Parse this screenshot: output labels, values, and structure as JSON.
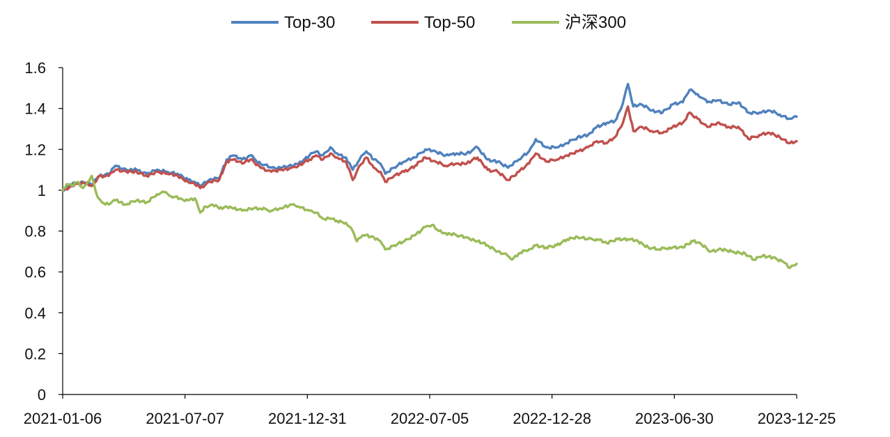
{
  "chart_data": {
    "type": "line",
    "title": "",
    "xlabel": "",
    "ylabel": "",
    "ylim": [
      0,
      1.6
    ],
    "yticks": [
      0,
      0.2,
      0.4,
      0.6,
      0.8,
      1,
      1.2,
      1.4,
      1.6
    ],
    "ytick_labels": [
      "0",
      "0.2",
      "0.4",
      "0.6",
      "0.8",
      "1",
      "1.2",
      "1.4",
      "1.6"
    ],
    "xlim": [
      "2021-01-06",
      "2023-12-25"
    ],
    "xtick_labels": [
      "2021-01-06",
      "2021-07-07",
      "2021-12-31",
      "2022-07-05",
      "2022-12-28",
      "2023-06-30",
      "2023-12-25"
    ],
    "grid": false,
    "legend_position": "top",
    "series": [
      {
        "name": "Top-30",
        "color": "#4F81BD",
        "points": [
          [
            "2021-01-06",
            1.0
          ],
          [
            "2021-01-20",
            1.03
          ],
          [
            "2021-02-05",
            1.04
          ],
          [
            "2021-02-18",
            1.03
          ],
          [
            "2021-03-01",
            1.07
          ],
          [
            "2021-03-15",
            1.08
          ],
          [
            "2021-03-25",
            1.12
          ],
          [
            "2021-04-10",
            1.1
          ],
          [
            "2021-04-25",
            1.1
          ],
          [
            "2021-05-10",
            1.08
          ],
          [
            "2021-05-25",
            1.1
          ],
          [
            "2021-06-10",
            1.09
          ],
          [
            "2021-06-25",
            1.08
          ],
          [
            "2021-07-10",
            1.05
          ],
          [
            "2021-07-20",
            1.04
          ],
          [
            "2021-07-28",
            1.02
          ],
          [
            "2021-08-10",
            1.05
          ],
          [
            "2021-08-25",
            1.06
          ],
          [
            "2021-09-05",
            1.15
          ],
          [
            "2021-09-15",
            1.17
          ],
          [
            "2021-09-28",
            1.15
          ],
          [
            "2021-10-10",
            1.17
          ],
          [
            "2021-10-25",
            1.13
          ],
          [
            "2021-11-10",
            1.11
          ],
          [
            "2021-11-25",
            1.11
          ],
          [
            "2021-12-10",
            1.12
          ],
          [
            "2021-12-20",
            1.13
          ],
          [
            "2022-01-05",
            1.17
          ],
          [
            "2022-01-15",
            1.19
          ],
          [
            "2022-01-25",
            1.17
          ],
          [
            "2022-02-05",
            1.21
          ],
          [
            "2022-02-15",
            1.18
          ],
          [
            "2022-02-28",
            1.16
          ],
          [
            "2022-03-10",
            1.1
          ],
          [
            "2022-03-20",
            1.15
          ],
          [
            "2022-03-30",
            1.19
          ],
          [
            "2022-04-10",
            1.15
          ],
          [
            "2022-04-20",
            1.13
          ],
          [
            "2022-04-27",
            1.08
          ],
          [
            "2022-05-10",
            1.11
          ],
          [
            "2022-05-25",
            1.14
          ],
          [
            "2022-06-10",
            1.16
          ],
          [
            "2022-06-25",
            1.2
          ],
          [
            "2022-07-10",
            1.19
          ],
          [
            "2022-07-25",
            1.17
          ],
          [
            "2022-08-10",
            1.18
          ],
          [
            "2022-08-25",
            1.18
          ],
          [
            "2022-09-10",
            1.21
          ],
          [
            "2022-09-25",
            1.15
          ],
          [
            "2022-10-10",
            1.14
          ],
          [
            "2022-10-25",
            1.11
          ],
          [
            "2022-11-10",
            1.15
          ],
          [
            "2022-11-25",
            1.19
          ],
          [
            "2022-12-05",
            1.25
          ],
          [
            "2022-12-20",
            1.21
          ],
          [
            "2023-01-05",
            1.21
          ],
          [
            "2023-01-20",
            1.23
          ],
          [
            "2023-02-05",
            1.26
          ],
          [
            "2023-02-20",
            1.27
          ],
          [
            "2023-03-05",
            1.31
          ],
          [
            "2023-03-20",
            1.33
          ],
          [
            "2023-04-01",
            1.34
          ],
          [
            "2023-04-10",
            1.4
          ],
          [
            "2023-04-20",
            1.52
          ],
          [
            "2023-04-28",
            1.41
          ],
          [
            "2023-05-10",
            1.42
          ],
          [
            "2023-05-25",
            1.39
          ],
          [
            "2023-06-10",
            1.38
          ],
          [
            "2023-06-25",
            1.42
          ],
          [
            "2023-07-10",
            1.43
          ],
          [
            "2023-07-20",
            1.49
          ],
          [
            "2023-08-01",
            1.47
          ],
          [
            "2023-08-15",
            1.43
          ],
          [
            "2023-08-30",
            1.44
          ],
          [
            "2023-09-15",
            1.42
          ],
          [
            "2023-09-30",
            1.43
          ],
          [
            "2023-10-15",
            1.38
          ],
          [
            "2023-10-31",
            1.38
          ],
          [
            "2023-11-15",
            1.39
          ],
          [
            "2023-11-30",
            1.37
          ],
          [
            "2023-12-15",
            1.35
          ],
          [
            "2023-12-25",
            1.36
          ]
        ]
      },
      {
        "name": "Top-50",
        "color": "#C0504D",
        "points": [
          [
            "2021-01-06",
            1.0
          ],
          [
            "2021-01-20",
            1.02
          ],
          [
            "2021-02-05",
            1.04
          ],
          [
            "2021-02-18",
            1.02
          ],
          [
            "2021-03-01",
            1.07
          ],
          [
            "2021-03-15",
            1.07
          ],
          [
            "2021-03-25",
            1.1
          ],
          [
            "2021-04-10",
            1.09
          ],
          [
            "2021-04-25",
            1.09
          ],
          [
            "2021-05-10",
            1.07
          ],
          [
            "2021-05-25",
            1.09
          ],
          [
            "2021-06-10",
            1.08
          ],
          [
            "2021-06-25",
            1.07
          ],
          [
            "2021-07-10",
            1.04
          ],
          [
            "2021-07-20",
            1.03
          ],
          [
            "2021-07-28",
            1.01
          ],
          [
            "2021-08-10",
            1.04
          ],
          [
            "2021-08-25",
            1.05
          ],
          [
            "2021-09-05",
            1.14
          ],
          [
            "2021-09-15",
            1.15
          ],
          [
            "2021-09-28",
            1.13
          ],
          [
            "2021-10-10",
            1.15
          ],
          [
            "2021-10-25",
            1.11
          ],
          [
            "2021-11-10",
            1.09
          ],
          [
            "2021-11-25",
            1.1
          ],
          [
            "2021-12-10",
            1.11
          ],
          [
            "2021-12-20",
            1.12
          ],
          [
            "2022-01-05",
            1.15
          ],
          [
            "2022-01-15",
            1.17
          ],
          [
            "2022-01-25",
            1.15
          ],
          [
            "2022-02-05",
            1.18
          ],
          [
            "2022-02-15",
            1.16
          ],
          [
            "2022-02-28",
            1.14
          ],
          [
            "2022-03-10",
            1.05
          ],
          [
            "2022-03-20",
            1.12
          ],
          [
            "2022-03-30",
            1.16
          ],
          [
            "2022-04-10",
            1.11
          ],
          [
            "2022-04-20",
            1.09
          ],
          [
            "2022-04-27",
            1.04
          ],
          [
            "2022-05-10",
            1.07
          ],
          [
            "2022-05-25",
            1.09
          ],
          [
            "2022-06-10",
            1.12
          ],
          [
            "2022-06-25",
            1.16
          ],
          [
            "2022-07-10",
            1.14
          ],
          [
            "2022-07-25",
            1.12
          ],
          [
            "2022-08-10",
            1.13
          ],
          [
            "2022-08-25",
            1.13
          ],
          [
            "2022-09-10",
            1.16
          ],
          [
            "2022-09-25",
            1.1
          ],
          [
            "2022-10-10",
            1.09
          ],
          [
            "2022-10-25",
            1.05
          ],
          [
            "2022-11-10",
            1.09
          ],
          [
            "2022-11-25",
            1.13
          ],
          [
            "2022-12-05",
            1.18
          ],
          [
            "2022-12-20",
            1.14
          ],
          [
            "2023-01-05",
            1.15
          ],
          [
            "2023-01-20",
            1.17
          ],
          [
            "2023-02-05",
            1.19
          ],
          [
            "2023-02-20",
            1.21
          ],
          [
            "2023-03-05",
            1.24
          ],
          [
            "2023-03-20",
            1.23
          ],
          [
            "2023-04-01",
            1.26
          ],
          [
            "2023-04-10",
            1.31
          ],
          [
            "2023-04-20",
            1.41
          ],
          [
            "2023-04-28",
            1.29
          ],
          [
            "2023-05-10",
            1.31
          ],
          [
            "2023-05-25",
            1.29
          ],
          [
            "2023-06-10",
            1.28
          ],
          [
            "2023-06-25",
            1.31
          ],
          [
            "2023-07-10",
            1.33
          ],
          [
            "2023-07-20",
            1.38
          ],
          [
            "2023-08-01",
            1.35
          ],
          [
            "2023-08-15",
            1.31
          ],
          [
            "2023-08-30",
            1.33
          ],
          [
            "2023-09-15",
            1.31
          ],
          [
            "2023-09-30",
            1.31
          ],
          [
            "2023-10-15",
            1.25
          ],
          [
            "2023-10-31",
            1.27
          ],
          [
            "2023-11-15",
            1.28
          ],
          [
            "2023-11-30",
            1.26
          ],
          [
            "2023-12-15",
            1.23
          ],
          [
            "2023-12-25",
            1.24
          ]
        ]
      },
      {
        "name": "沪深300",
        "color": "#9BBB59",
        "points": [
          [
            "2021-01-06",
            1.0
          ],
          [
            "2021-01-12",
            1.03
          ],
          [
            "2021-01-20",
            1.02
          ],
          [
            "2021-01-28",
            1.04
          ],
          [
            "2021-02-05",
            1.01
          ],
          [
            "2021-02-12",
            1.04
          ],
          [
            "2021-02-18",
            1.07
          ],
          [
            "2021-02-25",
            0.98
          ],
          [
            "2021-03-05",
            0.94
          ],
          [
            "2021-03-15",
            0.93
          ],
          [
            "2021-03-25",
            0.95
          ],
          [
            "2021-04-10",
            0.93
          ],
          [
            "2021-04-25",
            0.95
          ],
          [
            "2021-05-10",
            0.94
          ],
          [
            "2021-05-25",
            0.98
          ],
          [
            "2021-06-05",
            0.99
          ],
          [
            "2021-06-15",
            0.97
          ],
          [
            "2021-06-28",
            0.96
          ],
          [
            "2021-07-10",
            0.95
          ],
          [
            "2021-07-20",
            0.96
          ],
          [
            "2021-07-28",
            0.89
          ],
          [
            "2021-08-05",
            0.92
          ],
          [
            "2021-08-15",
            0.93
          ],
          [
            "2021-08-25",
            0.91
          ],
          [
            "2021-09-05",
            0.92
          ],
          [
            "2021-09-15",
            0.91
          ],
          [
            "2021-09-28",
            0.9
          ],
          [
            "2021-10-10",
            0.91
          ],
          [
            "2021-10-25",
            0.91
          ],
          [
            "2021-11-10",
            0.9
          ],
          [
            "2021-11-25",
            0.91
          ],
          [
            "2021-12-10",
            0.93
          ],
          [
            "2021-12-20",
            0.92
          ],
          [
            "2022-01-05",
            0.9
          ],
          [
            "2022-01-15",
            0.89
          ],
          [
            "2022-01-25",
            0.86
          ],
          [
            "2022-02-05",
            0.86
          ],
          [
            "2022-02-15",
            0.85
          ],
          [
            "2022-02-28",
            0.84
          ],
          [
            "2022-03-10",
            0.8
          ],
          [
            "2022-03-16",
            0.75
          ],
          [
            "2022-03-25",
            0.78
          ],
          [
            "2022-04-10",
            0.77
          ],
          [
            "2022-04-20",
            0.75
          ],
          [
            "2022-04-27",
            0.71
          ],
          [
            "2022-05-10",
            0.73
          ],
          [
            "2022-05-25",
            0.75
          ],
          [
            "2022-06-10",
            0.78
          ],
          [
            "2022-06-25",
            0.82
          ],
          [
            "2022-07-05",
            0.83
          ],
          [
            "2022-07-15",
            0.8
          ],
          [
            "2022-07-25",
            0.79
          ],
          [
            "2022-08-10",
            0.78
          ],
          [
            "2022-08-25",
            0.77
          ],
          [
            "2022-09-10",
            0.75
          ],
          [
            "2022-09-25",
            0.73
          ],
          [
            "2022-10-10",
            0.7
          ],
          [
            "2022-10-20",
            0.69
          ],
          [
            "2022-10-31",
            0.66
          ],
          [
            "2022-11-10",
            0.69
          ],
          [
            "2022-11-25",
            0.71
          ],
          [
            "2022-12-05",
            0.73
          ],
          [
            "2022-12-20",
            0.72
          ],
          [
            "2023-01-05",
            0.73
          ],
          [
            "2023-01-20",
            0.76
          ],
          [
            "2023-02-05",
            0.77
          ],
          [
            "2023-02-20",
            0.76
          ],
          [
            "2023-03-05",
            0.76
          ],
          [
            "2023-03-20",
            0.74
          ],
          [
            "2023-04-05",
            0.76
          ],
          [
            "2023-04-20",
            0.76
          ],
          [
            "2023-05-05",
            0.75
          ],
          [
            "2023-05-20",
            0.72
          ],
          [
            "2023-06-05",
            0.71
          ],
          [
            "2023-06-20",
            0.72
          ],
          [
            "2023-07-10",
            0.72
          ],
          [
            "2023-07-25",
            0.75
          ],
          [
            "2023-08-05",
            0.74
          ],
          [
            "2023-08-20",
            0.7
          ],
          [
            "2023-09-05",
            0.71
          ],
          [
            "2023-09-20",
            0.7
          ],
          [
            "2023-10-10",
            0.69
          ],
          [
            "2023-10-23",
            0.66
          ],
          [
            "2023-11-05",
            0.68
          ],
          [
            "2023-11-20",
            0.67
          ],
          [
            "2023-12-05",
            0.65
          ],
          [
            "2023-12-15",
            0.62
          ],
          [
            "2023-12-25",
            0.64
          ]
        ]
      }
    ]
  }
}
